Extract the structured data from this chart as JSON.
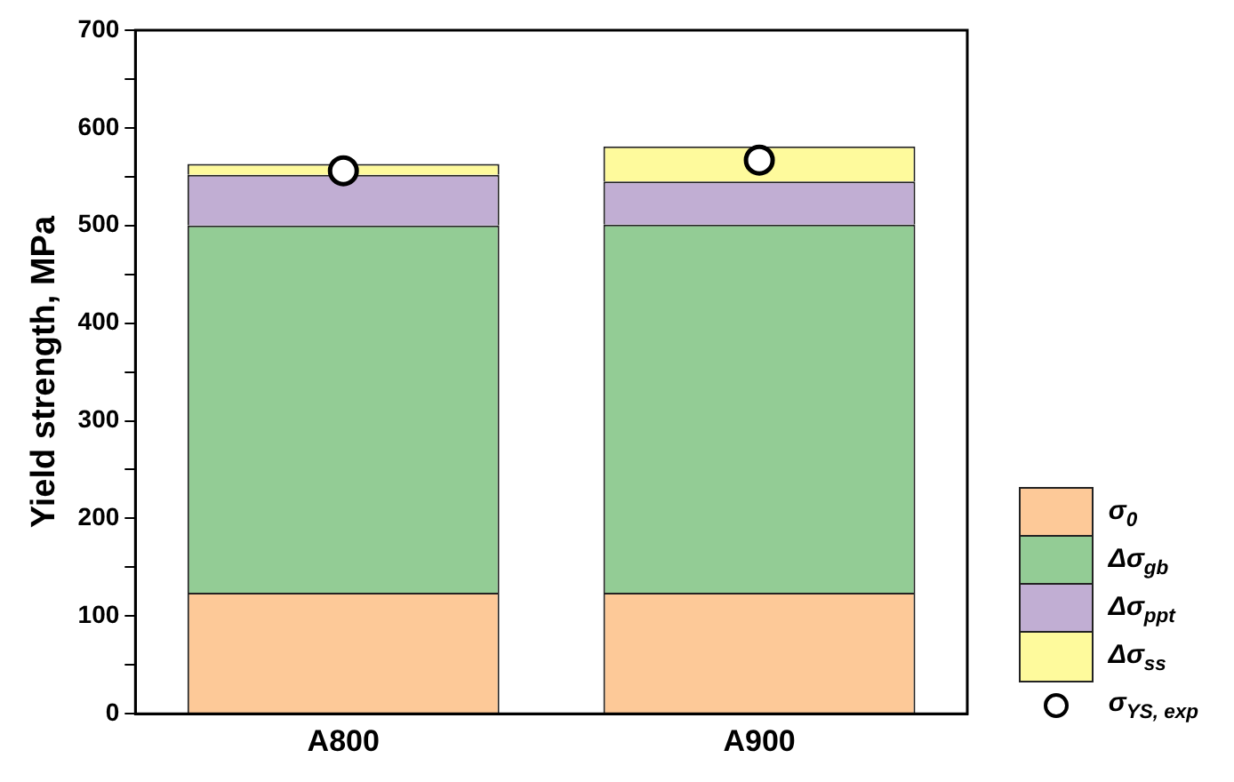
{
  "chart_data": {
    "type": "bar",
    "stacked": true,
    "ylabel": "Yield strength, MPa",
    "categories": [
      "A800",
      "A900"
    ],
    "series": [
      {
        "name": "σ$_{0}$",
        "color": "#fdc998",
        "values": [
          124,
          124
        ]
      },
      {
        "name": "Δσ$_{gb}$",
        "color": "#93cc95",
        "values": [
          376,
          377
        ]
      },
      {
        "name": "Δσ$_{ppt}$",
        "color": "#c1aed3",
        "values": [
          52,
          44
        ]
      },
      {
        "name": "Δσ$_{ss}$",
        "color": "#fefa9c",
        "values": [
          11,
          36
        ]
      },
      {
        "name": "σ$_{YS, exp}$",
        "type": "scatter",
        "marker": "circle",
        "color": "#ffffff",
        "x": [
          "A800",
          "A900"
        ],
        "values": [
          556,
          567
        ]
      }
    ],
    "ylim": [
      0,
      700
    ],
    "yticks": [
      0,
      {
        "value": 50,
        "label": null
      },
      100,
      {
        "value": 150,
        "label": null
      },
      200,
      {
        "value": 250,
        "label": null
      },
      300,
      {
        "value": 350,
        "label": null
      },
      400,
      {
        "value": 450,
        "label": null
      },
      500,
      {
        "value": 550,
        "label": null
      },
      600,
      {
        "value": 650,
        "label": null
      },
      700
    ],
    "grid": false,
    "legend": "bottom right"
  }
}
